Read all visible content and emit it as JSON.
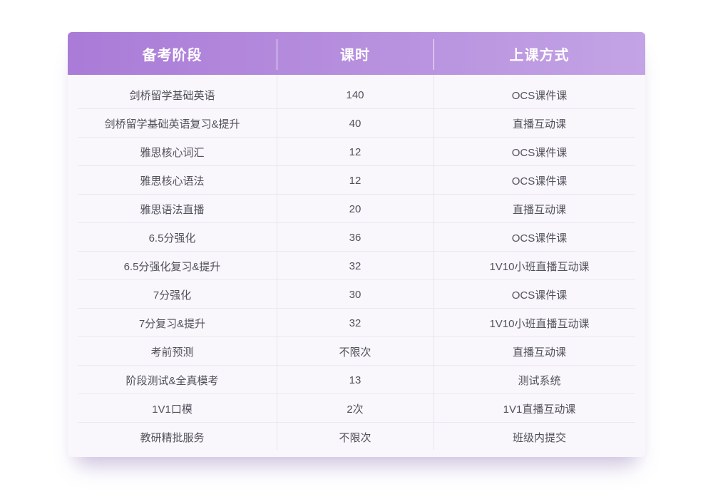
{
  "chart_data": {
    "type": "table",
    "columns": [
      "备考阶段",
      "课时",
      "上课方式"
    ],
    "rows": [
      [
        "剑桥留学基础英语",
        "140",
        "OCS课件课"
      ],
      [
        "剑桥留学基础英语复习&提升",
        "40",
        "直播互动课"
      ],
      [
        "雅思核心词汇",
        "12",
        "OCS课件课"
      ],
      [
        "雅思核心语法",
        "12",
        "OCS课件课"
      ],
      [
        "雅思语法直播",
        "20",
        "直播互动课"
      ],
      [
        "6.5分强化",
        "36",
        "OCS课件课"
      ],
      [
        "6.5分强化复习&提升",
        "32",
        "1V10小班直播互动课"
      ],
      [
        "7分强化",
        "30",
        "OCS课件课"
      ],
      [
        "7分复习&提升",
        "32",
        "1V10小班直播互动课"
      ],
      [
        "考前预测",
        "不限次",
        "直播互动课"
      ],
      [
        "阶段测试&全真模考",
        "13",
        "测试系统"
      ],
      [
        "1V1口模",
        "2次",
        "1V1直播互动课"
      ],
      [
        "教研精批服务",
        "不限次",
        "班级内提交"
      ]
    ],
    "layout": {
      "legend": "none",
      "grid": "row and column divider lines",
      "header_style": "purple gradient band, white bold text"
    }
  },
  "colors": {
    "header_gradient_left": "#aa7bd7",
    "header_gradient_right": "#c3a3e5",
    "header_text": "#ffffff",
    "card_background": "#f9f6fc",
    "body_text": "#51515a",
    "row_divider": "#ece8f2",
    "column_divider": "#e9e4ef",
    "page_background": "#ffffff"
  }
}
